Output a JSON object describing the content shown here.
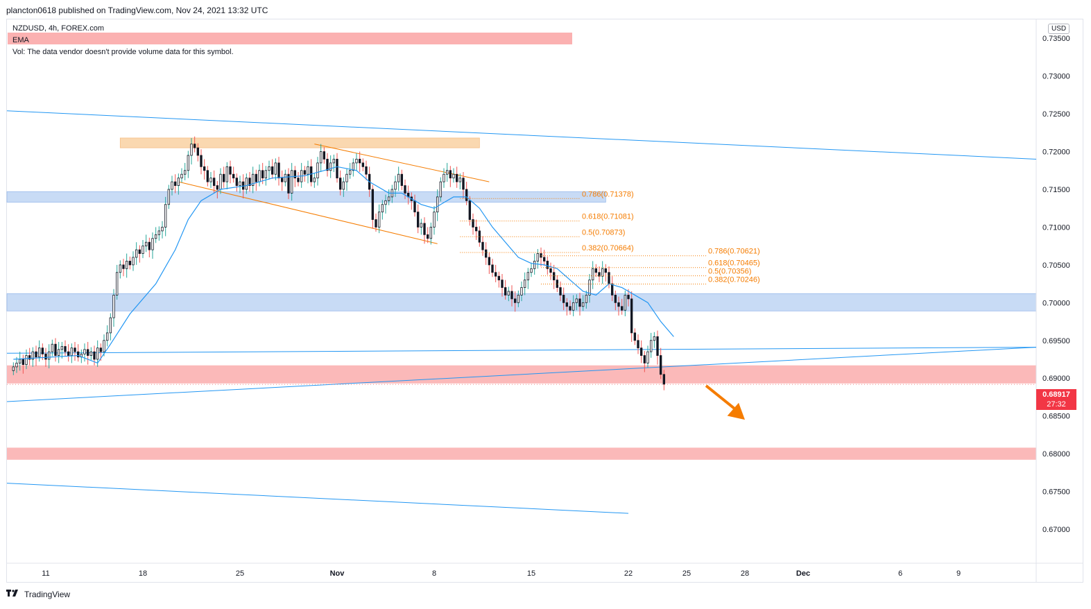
{
  "header": {
    "text": "plancton0618 published on TradingView.com, Nov 24, 2021 13:32 UTC"
  },
  "legend": {
    "symbol_line": "NZDUSD, 4h, FOREX.com",
    "ema_label": "EMA",
    "vol_note": "Vol: The data vendor doesn't provide volume data for this symbol."
  },
  "currency": "USD",
  "price_badge": {
    "price": "0.68917",
    "countdown": "27:32"
  },
  "footer": {
    "brand": "TradingView"
  },
  "colors": {
    "up": "#26a69a",
    "down": "#ef5350",
    "ema": "#2196f3",
    "trendline": "#2196f3",
    "fib": "#f57c00",
    "resistance_zone": "#fbb1b1",
    "support_zone_blue": "#c3d8f5",
    "orange_zone": "#fad4a8",
    "arrow": "#f57c00"
  },
  "chart_data": {
    "type": "candlestick",
    "title": "",
    "xlabel": "",
    "ylabel": "",
    "ylim": [
      0.6655,
      0.7375
    ],
    "y_ticks": [
      0.735,
      0.73,
      0.725,
      0.72,
      0.715,
      0.71,
      0.705,
      0.7,
      0.695,
      0.69,
      0.685,
      0.68,
      0.675,
      0.67
    ],
    "y_tick_labels": [
      "0.73500",
      "0.73000",
      "0.72500",
      "0.72000",
      "0.71500",
      "0.71000",
      "0.70500",
      "0.70000",
      "0.69500",
      "0.69000",
      "0.68500",
      "0.68000",
      "0.67500",
      "0.67000"
    ],
    "x_ticks": [
      {
        "label": "11",
        "bar": 10
      },
      {
        "label": "18",
        "bar": 40
      },
      {
        "label": "25",
        "bar": 70
      },
      {
        "label": "Nov",
        "bar": 100
      },
      {
        "label": "8",
        "bar": 130
      },
      {
        "label": "15",
        "bar": 160
      },
      {
        "label": "22",
        "bar": 190
      },
      {
        "label": "25",
        "bar": 208
      },
      {
        "label": "28",
        "bar": 226
      },
      {
        "label": "Dec",
        "bar": 244
      },
      {
        "label": "6",
        "bar": 274
      },
      {
        "label": "9",
        "bar": 292
      }
    ],
    "bar_range": [
      -2,
      316
    ],
    "closes": [
      0.6915,
      0.692,
      0.6925,
      0.6918,
      0.693,
      0.6925,
      0.6935,
      0.6928,
      0.694,
      0.6932,
      0.6925,
      0.6935,
      0.6945,
      0.693,
      0.6938,
      0.6942,
      0.6935,
      0.693,
      0.694,
      0.6935,
      0.6928,
      0.6932,
      0.6938,
      0.693,
      0.6935,
      0.6925,
      0.694,
      0.6935,
      0.695,
      0.696,
      0.698,
      0.701,
      0.704,
      0.705,
      0.7045,
      0.7055,
      0.705,
      0.706,
      0.707,
      0.7065,
      0.7075,
      0.708,
      0.707,
      0.7085,
      0.709,
      0.7095,
      0.71,
      0.713,
      0.715,
      0.716,
      0.7155,
      0.7165,
      0.717,
      0.7175,
      0.7195,
      0.721,
      0.7205,
      0.7195,
      0.718,
      0.7175,
      0.716,
      0.7165,
      0.7155,
      0.715,
      0.717,
      0.716,
      0.718,
      0.717,
      0.7165,
      0.7155,
      0.716,
      0.715,
      0.7165,
      0.7155,
      0.717,
      0.716,
      0.7175,
      0.7165,
      0.7175,
      0.718,
      0.717,
      0.7185,
      0.7165,
      0.716,
      0.717,
      0.7145,
      0.7175,
      0.7165,
      0.716,
      0.7175,
      0.717,
      0.718,
      0.716,
      0.7165,
      0.7185,
      0.72,
      0.719,
      0.7175,
      0.7185,
      0.719,
      0.7165,
      0.715,
      0.716,
      0.717,
      0.7175,
      0.7185,
      0.719,
      0.7185,
      0.718,
      0.717,
      0.715,
      0.711,
      0.71,
      0.712,
      0.713,
      0.7135,
      0.714,
      0.715,
      0.716,
      0.717,
      0.7155,
      0.7145,
      0.714,
      0.7135,
      0.712,
      0.71,
      0.7105,
      0.709,
      0.7085,
      0.71,
      0.712,
      0.714,
      0.716,
      0.717,
      0.7175,
      0.7165,
      0.717,
      0.716,
      0.7165,
      0.715,
      0.7135,
      0.711,
      0.71,
      0.7095,
      0.708,
      0.707,
      0.706,
      0.705,
      0.704,
      0.7035,
      0.703,
      0.702,
      0.701,
      0.7015,
      0.7005,
      0.7,
      0.701,
      0.702,
      0.703,
      0.704,
      0.7045,
      0.7055,
      0.7065,
      0.706,
      0.7055,
      0.7045,
      0.704,
      0.703,
      0.702,
      0.701,
      0.7,
      0.6995,
      0.699,
      0.7,
      0.7005,
      0.6995,
      0.7,
      0.701,
      0.703,
      0.7045,
      0.704,
      0.7035,
      0.7045,
      0.704,
      0.7025,
      0.701,
      0.7,
      0.6995,
      0.699,
      0.701,
      0.7005,
      0.696,
      0.695,
      0.694,
      0.693,
      0.692,
      0.6935,
      0.695,
      0.6955,
      0.693,
      0.6905,
      0.6892
    ],
    "opens_offset": "computed",
    "ema": [
      [
        0,
        0.6925
      ],
      [
        20,
        0.693
      ],
      [
        26,
        0.692
      ],
      [
        30,
        0.6945
      ],
      [
        36,
        0.6985
      ],
      [
        44,
        0.7025
      ],
      [
        50,
        0.707
      ],
      [
        54,
        0.711
      ],
      [
        58,
        0.7135
      ],
      [
        64,
        0.715
      ],
      [
        72,
        0.7155
      ],
      [
        80,
        0.7165
      ],
      [
        90,
        0.7168
      ],
      [
        96,
        0.7175
      ],
      [
        100,
        0.718
      ],
      [
        106,
        0.7175
      ],
      [
        110,
        0.716
      ],
      [
        116,
        0.7145
      ],
      [
        120,
        0.7145
      ],
      [
        126,
        0.713
      ],
      [
        130,
        0.7125
      ],
      [
        136,
        0.714
      ],
      [
        140,
        0.714
      ],
      [
        144,
        0.7125
      ],
      [
        148,
        0.71
      ],
      [
        152,
        0.708
      ],
      [
        156,
        0.706
      ],
      [
        160,
        0.7052
      ],
      [
        164,
        0.705
      ],
      [
        168,
        0.7045
      ],
      [
        172,
        0.703
      ],
      [
        176,
        0.7015
      ],
      [
        180,
        0.701
      ],
      [
        184,
        0.7025
      ],
      [
        188,
        0.702
      ],
      [
        192,
        0.701
      ],
      [
        196,
        0.7
      ],
      [
        200,
        0.6975
      ],
      [
        204,
        0.6955
      ]
    ],
    "zones": [
      {
        "kind": "orange",
        "bar_from": 33,
        "bar_to": 144,
        "y_from": 0.7205,
        "y_to": 0.7218
      },
      {
        "kind": "blue",
        "bar_from": -2,
        "bar_to": 183,
        "y_from": 0.7133,
        "y_to": 0.7147
      },
      {
        "kind": "blue",
        "bar_from": -2,
        "bar_to": 316,
        "y_from": 0.6989,
        "y_to": 0.7012
      },
      {
        "kind": "red",
        "bar_from": -2,
        "bar_to": 316,
        "y_from": 0.6893,
        "y_to": 0.6917
      },
      {
        "kind": "red",
        "bar_from": -2,
        "bar_to": 316,
        "y_from": 0.6792,
        "y_to": 0.6808
      }
    ],
    "trendlines": [
      {
        "color": "blue",
        "from": [
          -2,
          0.7254
        ],
        "to": [
          316,
          0.719
        ]
      },
      {
        "color": "blue",
        "from": [
          -2,
          0.6933
        ],
        "to": [
          316,
          0.6941
        ]
      },
      {
        "color": "blue",
        "from": [
          -2,
          0.6869
        ],
        "to": [
          316,
          0.6941
        ]
      },
      {
        "color": "blue",
        "from": [
          -2,
          0.6761
        ],
        "to": [
          190,
          0.6721
        ]
      },
      {
        "color": "orange",
        "from": [
          51,
          0.716
        ],
        "to": [
          131,
          0.7078
        ]
      },
      {
        "color": "orange",
        "from": [
          93,
          0.721
        ],
        "to": [
          147,
          0.716
        ]
      }
    ],
    "fib_sets": [
      {
        "bar_from": 138,
        "bar_to": 175,
        "label_bar": 175,
        "levels": [
          {
            "label": "0.786(0.71378)",
            "y": 0.71378
          },
          {
            "label": "0.618(0.71081)",
            "y": 0.71081
          },
          {
            "label": "0.5(0.70873)",
            "y": 0.70873
          },
          {
            "label": "0.382(0.70664)",
            "y": 0.70664
          }
        ]
      },
      {
        "bar_from": 163,
        "bar_to": 214,
        "label_bar": 214,
        "levels": [
          {
            "label": "0.786(0.70621)",
            "y": 0.70621
          },
          {
            "label": "0.618(0.70465)",
            "y": 0.70465
          },
          {
            "label": "0.5(0.70356)",
            "y": 0.70356
          },
          {
            "label": "0.382(0.70246)",
            "y": 0.70246
          }
        ]
      }
    ],
    "arrow": {
      "from": [
        214,
        0.689
      ],
      "to": [
        226,
        0.6845
      ]
    },
    "last_price": 0.68917
  }
}
